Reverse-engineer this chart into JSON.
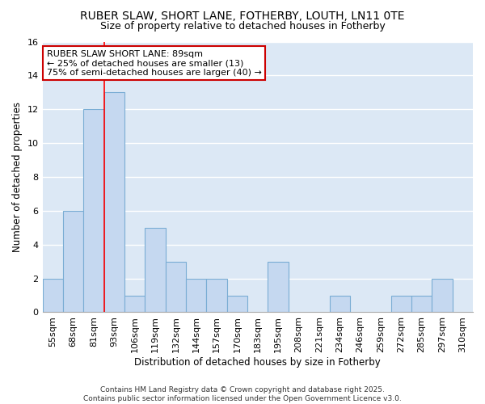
{
  "title": "RUBER SLAW, SHORT LANE, FOTHERBY, LOUTH, LN11 0TE",
  "subtitle": "Size of property relative to detached houses in Fotherby",
  "xlabel": "Distribution of detached houses by size in Fotherby",
  "ylabel": "Number of detached properties",
  "categories": [
    "55sqm",
    "68sqm",
    "81sqm",
    "93sqm",
    "106sqm",
    "119sqm",
    "132sqm",
    "144sqm",
    "157sqm",
    "170sqm",
    "183sqm",
    "195sqm",
    "208sqm",
    "221sqm",
    "234sqm",
    "246sqm",
    "259sqm",
    "272sqm",
    "285sqm",
    "297sqm",
    "310sqm"
  ],
  "values": [
    2,
    6,
    12,
    13,
    1,
    5,
    3,
    2,
    2,
    1,
    0,
    3,
    0,
    0,
    1,
    0,
    0,
    1,
    1,
    2,
    0
  ],
  "bar_color": "#c5d8f0",
  "bar_edge_color": "#7aadd4",
  "red_line_x": 2.5,
  "annotation_text": "RUBER SLAW SHORT LANE: 89sqm\n← 25% of detached houses are smaller (13)\n75% of semi-detached houses are larger (40) →",
  "annotation_box_color": "#ffffff",
  "annotation_box_edge_color": "#cc0000",
  "ylim": [
    0,
    16
  ],
  "yticks": [
    0,
    2,
    4,
    6,
    8,
    10,
    12,
    14,
    16
  ],
  "plot_bg_color": "#dce8f5",
  "fig_bg_color": "#ffffff",
  "grid_color": "#ffffff",
  "footer_text": "Contains HM Land Registry data © Crown copyright and database right 2025.\nContains public sector information licensed under the Open Government Licence v3.0.",
  "title_fontsize": 10,
  "subtitle_fontsize": 9,
  "axis_label_fontsize": 8.5,
  "tick_fontsize": 8,
  "annotation_fontsize": 8,
  "footer_fontsize": 6.5
}
